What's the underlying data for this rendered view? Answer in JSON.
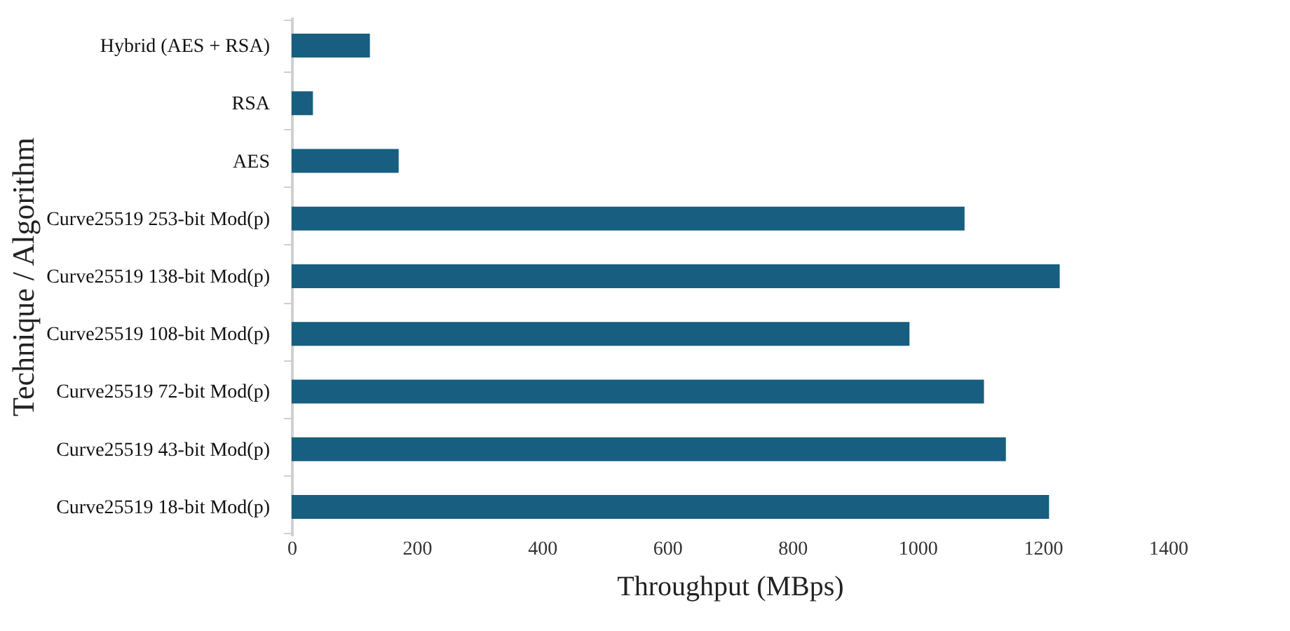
{
  "chart_data": {
    "type": "bar",
    "orientation": "horizontal",
    "xlabel": "Throughput (MBps)",
    "ylabel": "Technique / Algorithm",
    "categories": [
      "Hybrid (AES + RSA)",
      "RSA",
      "AES",
      "Curve25519 253-bit Mod(p)",
      "Curve25519 138-bit Mod(p)",
      "Curve25519 108-bit Mod(p)",
      "Curve25519 72-bit Mod(p)",
      "Curve25519 43-bit Mod(p)",
      "Curve25519 18-bit Mod(p)"
    ],
    "values": [
      125,
      34,
      171,
      1075,
      1227,
      987,
      1106,
      1141,
      1210
    ],
    "color": "#175e80",
    "xlim": [
      0,
      1400
    ],
    "xticks": [
      0,
      200,
      400,
      600,
      800,
      1000,
      1200,
      1400
    ],
    "grid": false
  }
}
